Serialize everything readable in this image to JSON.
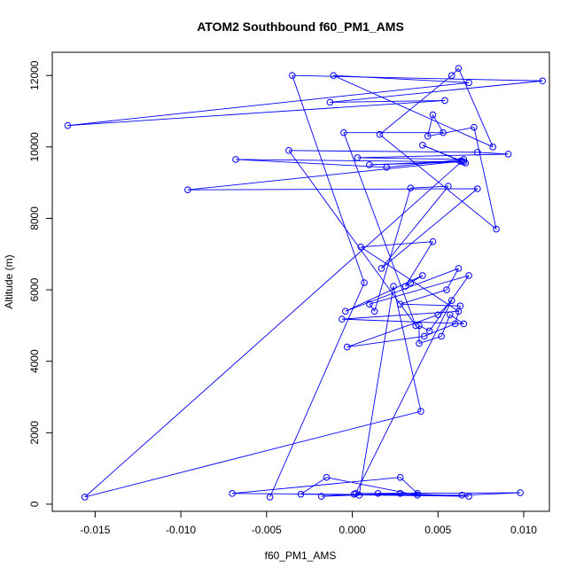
{
  "chart_data": {
    "type": "line",
    "title": "ATOM2 Southbound f60_PM1_AMS",
    "xlabel": "f60_PM1_AMS",
    "ylabel": "Altitude (m)",
    "xlim": [
      -0.0175,
      0.0115
    ],
    "ylim": [
      -200,
      12650
    ],
    "xticks": [
      -0.015,
      -0.01,
      -0.005,
      0.0,
      0.005,
      0.01
    ],
    "xtick_labels": [
      "-0.015",
      "-0.010",
      "-0.005",
      "0.000",
      "0.005",
      "0.010"
    ],
    "yticks": [
      0,
      2000,
      4000,
      6000,
      8000,
      10000,
      12000
    ],
    "ytick_labels": [
      "0",
      "2000",
      "4000",
      "6000",
      "8000",
      "10000",
      "12000"
    ],
    "grid": false,
    "color": "#0000ff",
    "marker": "open-circle",
    "series": [
      {
        "points": [
          [
            -0.0048,
            200
          ],
          [
            0.0007,
            6200
          ],
          [
            -0.0035,
            12000
          ],
          [
            0.0111,
            11850
          ],
          [
            -0.0013,
            11250
          ],
          [
            0.0054,
            11300
          ],
          [
            -0.0166,
            10600
          ],
          [
            0.0068,
            11800
          ],
          [
            -0.0011,
            12000
          ],
          [
            0.0082,
            10000
          ],
          [
            0.0062,
            12200
          ],
          [
            0.0058,
            12000
          ],
          [
            0.0016,
            10350
          ],
          [
            0.0084,
            7700
          ],
          [
            0.0071,
            10550
          ],
          [
            0.0044,
            10300
          ],
          [
            0.0047,
            10900
          ],
          [
            0.0053,
            10400
          ],
          [
            -0.0005,
            10400
          ],
          [
            0.0037,
            5000
          ],
          [
            -0.0037,
            9900
          ],
          [
            0.0073,
            9850
          ],
          [
            0.0091,
            9800
          ],
          [
            0.0003,
            9700
          ],
          [
            0.0065,
            9650
          ],
          [
            0.002,
            9430
          ],
          [
            -0.0068,
            9650
          ],
          [
            0.0065,
            9580
          ],
          [
            0.001,
            9500
          ],
          [
            0.0063,
            9600
          ],
          [
            -0.0096,
            8800
          ],
          [
            0.0073,
            8830
          ],
          [
            0.0017,
            6600
          ],
          [
            0.0056,
            8900
          ],
          [
            0.0034,
            8850
          ],
          [
            0.0013,
            5400
          ],
          [
            0.001,
            5600
          ],
          [
            0.0068,
            6400
          ],
          [
            0.0045,
            4850
          ],
          [
            0.0039,
            5000
          ],
          [
            0.0039,
            4500
          ],
          [
            0.0052,
            4700
          ],
          [
            0.0057,
            5300
          ],
          [
            0.0065,
            5050
          ],
          [
            -0.0006,
            5180
          ],
          [
            0.0062,
            5400
          ],
          [
            0.0005,
            7200
          ],
          [
            0.0047,
            7350
          ],
          [
            0.0031,
            6100
          ],
          [
            0.0034,
            6200
          ],
          [
            0.0041,
            6400
          ],
          [
            -0.0004,
            5400
          ],
          [
            0.0062,
            6600
          ],
          [
            0.0055,
            6000
          ],
          [
            0.0028,
            5600
          ],
          [
            0.0063,
            5550
          ],
          [
            0.006,
            5050
          ],
          [
            0.0042,
            4700
          ],
          [
            -0.0003,
            4400
          ],
          [
            0.005,
            5300
          ],
          [
            0.0058,
            5700
          ],
          [
            0.0002,
            300
          ],
          [
            0.0038,
            300
          ],
          [
            0.0028,
            750
          ],
          [
            -0.007,
            300
          ],
          [
            0.0064,
            250
          ],
          [
            0.0098,
            320
          ],
          [
            0.0015,
            300
          ],
          [
            0.0038,
            250
          ],
          [
            -0.0015,
            750
          ],
          [
            -0.003,
            280
          ],
          [
            0.0068,
            220
          ],
          [
            0.0028,
            300
          ],
          [
            -0.0018,
            220
          ],
          [
            0.0001,
            280
          ],
          [
            0.0004,
            250
          ],
          [
            0.0024,
            6100
          ],
          [
            0.004,
            2600
          ],
          [
            -0.0156,
            200
          ],
          [
            0.0064,
            9600
          ],
          [
            0.0041,
            10050
          ],
          [
            0.0066,
            9550
          ]
        ]
      }
    ]
  }
}
